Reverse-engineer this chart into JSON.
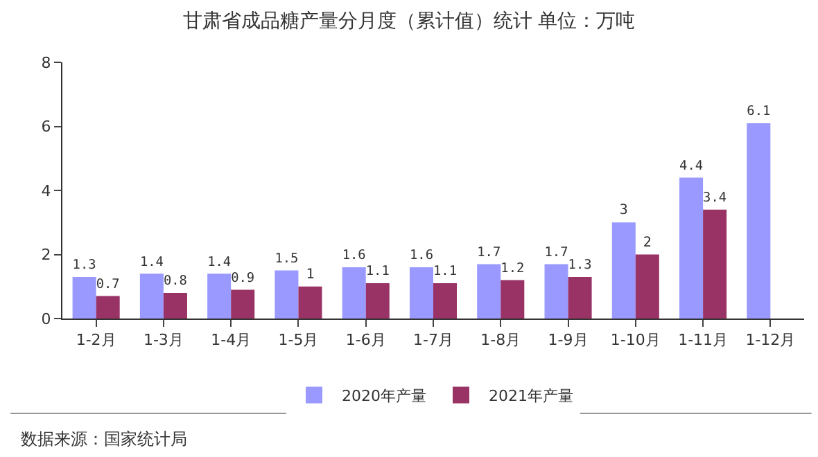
{
  "chart_data": {
    "type": "bar",
    "title": "甘肃省成品糖产量分月度（累计值）统计 单位：万吨",
    "categories": [
      "1-2月",
      "1-3月",
      "1-4月",
      "1-5月",
      "1-6月",
      "1-7月",
      "1-8月",
      "1-9月",
      "1-10月",
      "1-11月",
      "1-12月"
    ],
    "series": [
      {
        "name": "2020年产量",
        "color": "#9999ff",
        "values": [
          1.3,
          1.4,
          1.4,
          1.5,
          1.6,
          1.6,
          1.7,
          1.7,
          3,
          4.4,
          6.1
        ]
      },
      {
        "name": "2021年产量",
        "color": "#993366",
        "values": [
          0.7,
          0.8,
          0.9,
          1,
          1.1,
          1.1,
          1.2,
          1.3,
          2,
          3.4,
          null
        ]
      }
    ],
    "ylim": [
      0,
      8
    ],
    "yticks": [
      0,
      2,
      4,
      6,
      8
    ],
    "grid": false,
    "legend": "bottom",
    "data_labels": true,
    "annotations": [
      "数据来源：国家统计局"
    ]
  }
}
